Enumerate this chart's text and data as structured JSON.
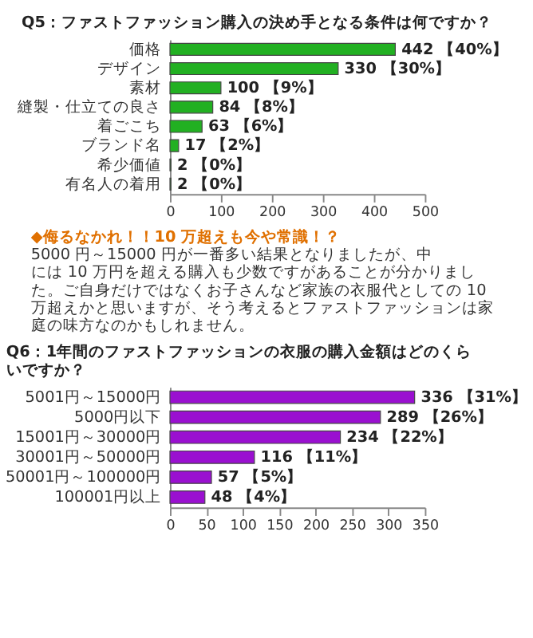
{
  "chart_data": [
    {
      "type": "bar",
      "orientation": "horizontal",
      "title": "Q5：ファストファッション購入の決め手となる条件は何ですか？",
      "categories": [
        "価格",
        "デザイン",
        "素材",
        "縫製・仕立ての良さ",
        "着ごこち",
        "ブランド名",
        "希少価値",
        "有名人の着用"
      ],
      "values": [
        442,
        330,
        100,
        84,
        63,
        17,
        2,
        2
      ],
      "value_labels": [
        "442 【40%】",
        "330 【30%】",
        "100 【9%】",
        "84 【8%】",
        "63 【6%】",
        "17 【2%】",
        "2 【0%】",
        "2 【0%】"
      ],
      "color": "#22b022",
      "xlim": [
        0,
        500
      ],
      "xticks": [
        0,
        100,
        200,
        300,
        400,
        500
      ],
      "grid": false,
      "annotations": [
        "◆侮るなかれ！！10 万超えも今や常識！？",
        "5000 円～15000 円が一番多い結果となりましたが、中には 10 万円を超える購入も少数ですがあることが分かりました。ご自身だけではなくお子さんなど家族の衣服代としての 10 万超えかと思いますが、そう考えるとファストファッションは家庭の味方なのかもしれません。"
      ]
    },
    {
      "type": "bar",
      "orientation": "horizontal",
      "title": "Q6：1年間のファストファッションの衣服の購入金額はどのくらいですか？",
      "categories": [
        "5001円～15000円",
        "5000円以下",
        "15001円～30000円",
        "30001円～50000円",
        "50001円～100000円",
        "100001円以上"
      ],
      "values": [
        336,
        289,
        234,
        116,
        57,
        48
      ],
      "value_labels": [
        "336 【31%】",
        "289 【26%】",
        "234 【22%】",
        "116 【11%】",
        "57 【5%】",
        "48 【4%】"
      ],
      "color": "#9a10d0",
      "xlim": [
        0,
        350
      ],
      "xticks": [
        0,
        50,
        100,
        150,
        200,
        250,
        300,
        350
      ],
      "grid": false
    }
  ]
}
